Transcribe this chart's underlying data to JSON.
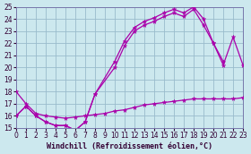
{
  "xlabel": "Windchill (Refroidissement éolien,°C)",
  "bg_color": "#cce8ee",
  "line_color": "#aa00aa",
  "grid_color": "#99bbcc",
  "xlim": [
    0,
    23
  ],
  "ylim": [
    15,
    25
  ],
  "curve1_x": [
    0,
    1,
    2,
    3,
    4,
    5,
    6,
    7,
    8,
    10,
    11,
    12,
    13,
    14,
    15,
    16,
    17,
    18,
    19,
    20,
    21
  ],
  "curve1_y": [
    16.0,
    16.8,
    16.0,
    15.5,
    15.2,
    15.2,
    14.8,
    15.5,
    17.8,
    20.5,
    22.2,
    23.3,
    23.8,
    24.1,
    24.5,
    24.8,
    24.5,
    25.0,
    24.0,
    22.0,
    20.5
  ],
  "curve2_x": [
    0,
    1,
    2,
    3,
    4,
    5,
    6,
    7,
    8,
    10,
    11,
    12,
    13,
    14,
    15,
    16,
    17,
    18,
    19,
    20,
    21,
    22,
    23
  ],
  "curve2_y": [
    16.0,
    16.8,
    16.0,
    15.5,
    15.2,
    15.2,
    14.8,
    15.5,
    17.8,
    20.0,
    21.8,
    23.0,
    23.5,
    23.8,
    24.2,
    24.5,
    24.2,
    24.8,
    23.5,
    22.0,
    20.2,
    22.5,
    20.2
  ],
  "curve3_x": [
    0,
    1,
    2,
    3,
    4,
    5,
    6,
    7,
    8,
    9,
    10,
    11,
    12,
    13,
    14,
    15,
    16,
    17,
    18,
    19,
    20,
    21,
    22,
    23
  ],
  "curve3_y": [
    18.0,
    17.0,
    16.2,
    16.0,
    15.9,
    15.8,
    15.9,
    16.0,
    16.1,
    16.2,
    16.4,
    16.5,
    16.7,
    16.9,
    17.0,
    17.1,
    17.2,
    17.3,
    17.4,
    17.4,
    17.4,
    17.4,
    17.4,
    17.5
  ],
  "xlabel_color": "#330033",
  "xlabel_fontsize": 6.0,
  "tick_fontsize": 5.5,
  "tick_color": "#330033",
  "spine_color": "#7777aa"
}
